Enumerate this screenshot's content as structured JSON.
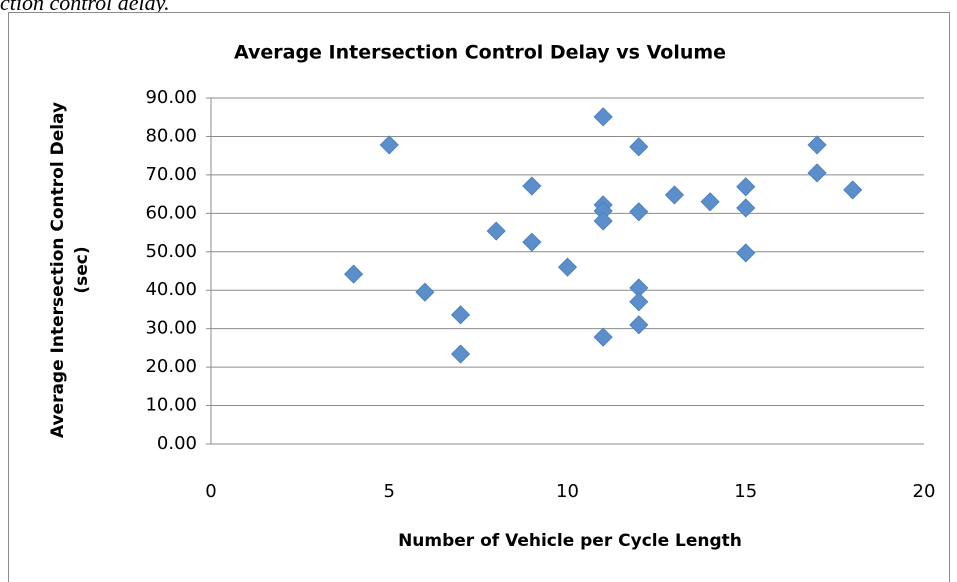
{
  "caption": "ction control delay.",
  "chart_data": {
    "type": "scatter",
    "title": "Average Intersection Control Delay vs Volume",
    "x_label": "Number of Vehicle per Cycle Length",
    "y_label": "Average Intersection Control Delay (sec)",
    "color": "#5b8fcb",
    "grid": true,
    "xlim": [
      0,
      20
    ],
    "xticks": [
      0,
      5,
      10,
      15,
      20
    ],
    "ylim": [
      0,
      90
    ],
    "yticks": [
      {
        "value": 0,
        "label": "0.00"
      },
      {
        "value": 10,
        "label": "10.00"
      },
      {
        "value": 20,
        "label": "20.00"
      },
      {
        "value": 30,
        "label": "30.00"
      },
      {
        "value": 40,
        "label": "40.00"
      },
      {
        "value": 50,
        "label": "50.00"
      },
      {
        "value": 60,
        "label": "60.00"
      },
      {
        "value": 70,
        "label": "70.00"
      },
      {
        "value": 80,
        "label": "80.00"
      },
      {
        "value": 90,
        "label": "90.00"
      }
    ],
    "x": [
      4,
      5,
      6,
      7,
      7,
      8,
      9,
      9,
      10,
      11,
      11,
      11,
      11,
      11,
      12,
      12,
      12,
      12,
      12,
      13,
      14,
      15,
      15,
      15,
      17,
      17,
      18
    ],
    "values": [
      44.2,
      77.8,
      39.5,
      33.6,
      23.4,
      55.4,
      67.1,
      52.5,
      46,
      85.1,
      62.2,
      60.6,
      58,
      27.8,
      77.3,
      60.4,
      40.6,
      37,
      31,
      64.8,
      63,
      66.9,
      61.4,
      49.7,
      77.8,
      70.5,
      66.1
    ]
  }
}
